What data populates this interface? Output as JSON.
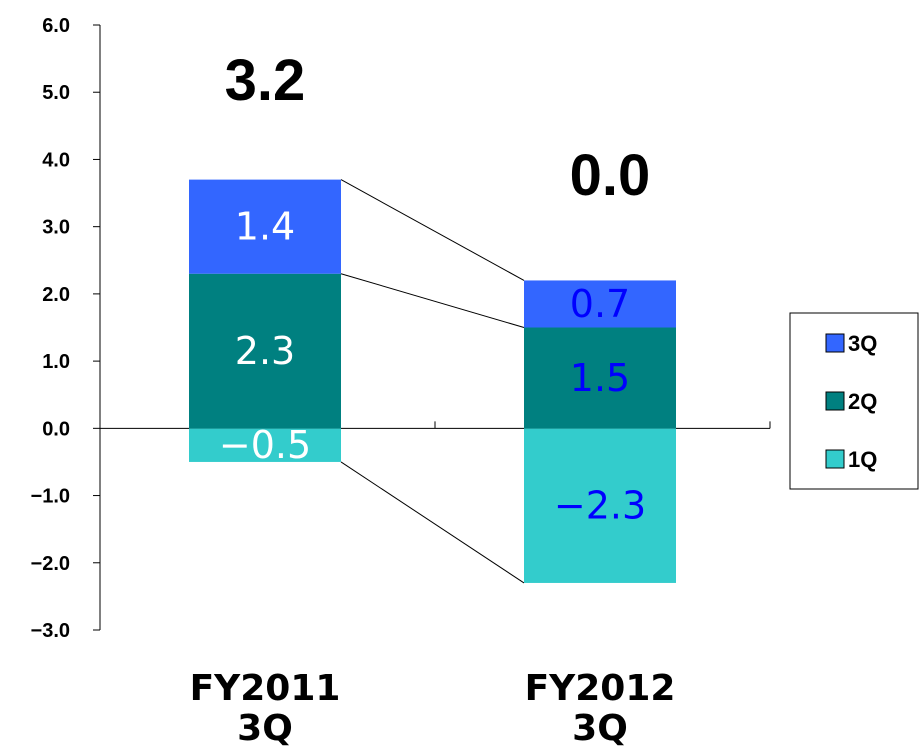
{
  "chart_data": {
    "type": "bar",
    "stacked": true,
    "categories": [
      [
        "FY2011",
        "3Q"
      ],
      [
        "FY2012",
        "3Q"
      ]
    ],
    "series": [
      {
        "name": "1Q",
        "values": [
          -0.5,
          -2.3
        ],
        "color": "#33cccc",
        "labels": [
          "−0.5",
          "−2.3"
        ]
      },
      {
        "name": "2Q",
        "values": [
          2.3,
          1.5
        ],
        "color": "#008080",
        "labels": [
          "2.3",
          "1.5"
        ]
      },
      {
        "name": "3Q",
        "values": [
          1.4,
          0.7
        ],
        "color": "#3366ff",
        "labels": [
          "1.4",
          "0.7"
        ]
      }
    ],
    "totals": [
      "3.2",
      "0.0"
    ],
    "label_colors": [
      [
        "#ffffff",
        "#ffffff",
        "#ffffff"
      ],
      [
        "#0000ff",
        "#0000ff",
        "#0000ff"
      ]
    ],
    "ylim": [
      -3.0,
      6.0
    ],
    "yticks": [
      "6.0",
      "5.0",
      "4.0",
      "3.0",
      "2.0",
      "1.0",
      "0.0",
      "−1.0",
      "−2.0",
      "−3.0"
    ],
    "legend": {
      "position": "right",
      "order": [
        "3Q",
        "2Q",
        "1Q"
      ]
    },
    "connector_lines": true,
    "grid": false
  }
}
